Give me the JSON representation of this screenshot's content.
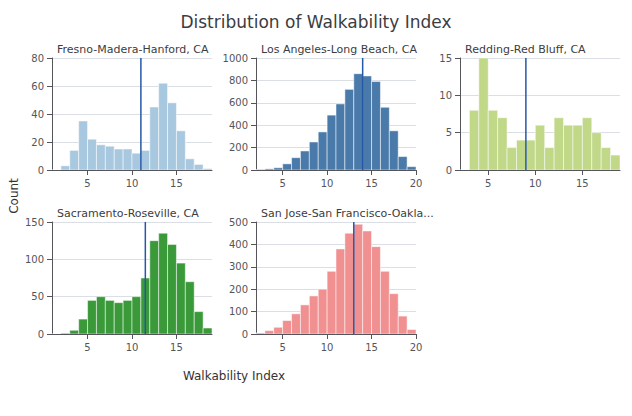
{
  "title": "Distribution of Walkability Index",
  "xlabel": "Walkability Index",
  "ylabel": "Count",
  "chart_data": [
    {
      "type": "histogram",
      "title": "Fresno-Madera-Hanford, CA",
      "color": "#a8c8e0",
      "bins": [
        1,
        2,
        3,
        4,
        5,
        6,
        7,
        8,
        9,
        10,
        11,
        12,
        13,
        14,
        15,
        16,
        17,
        18,
        19
      ],
      "values": [
        0,
        3,
        14,
        35,
        22,
        18,
        17,
        15,
        15,
        12,
        14,
        45,
        62,
        48,
        28,
        8,
        4,
        1
      ],
      "mean_line": {
        "value": 11.0,
        "color": "#2457a8"
      },
      "xlim": [
        1,
        19
      ],
      "xticks": [
        5,
        10,
        15
      ],
      "ylim": [
        0,
        80
      ],
      "yticks": [
        0,
        20,
        40,
        60,
        80
      ],
      "grid": true
    },
    {
      "type": "histogram",
      "title": "Los Angeles-Long Beach, CA",
      "color": "#4a7aaa",
      "bins": [
        2,
        3,
        4,
        5,
        6,
        7,
        8,
        9,
        10,
        11,
        12,
        13,
        14,
        15,
        16,
        17,
        18,
        19,
        20
      ],
      "values": [
        5,
        10,
        20,
        55,
        110,
        170,
        250,
        340,
        490,
        590,
        720,
        860,
        840,
        790,
        560,
        350,
        120,
        30
      ],
      "mean_line": {
        "value": 14.0,
        "color": "#2457a8"
      },
      "xlim": [
        2,
        20
      ],
      "xticks": [
        5,
        10,
        15,
        20
      ],
      "ylim": [
        0,
        1000
      ],
      "yticks": [
        0,
        200,
        400,
        600,
        800,
        1000
      ],
      "grid": true
    },
    {
      "type": "histogram",
      "title": "Redding-Red Bluff, CA",
      "color": "#c0d888",
      "bins": [
        2,
        3,
        4,
        5,
        6,
        7,
        8,
        9,
        10,
        11,
        12,
        13,
        14,
        15,
        16,
        17,
        18,
        19
      ],
      "values": [
        0,
        8,
        15,
        8,
        7,
        3,
        4,
        4,
        6,
        3,
        7,
        6,
        6,
        7,
        5,
        3,
        2
      ],
      "mean_line": {
        "value": 9.0,
        "color": "#2457a8"
      },
      "xlim": [
        2,
        19
      ],
      "xticks": [
        5,
        10,
        15
      ],
      "ylim": [
        0,
        15
      ],
      "yticks": [
        0,
        5,
        10,
        15
      ],
      "grid": true
    },
    {
      "type": "histogram",
      "title": "Sacramento-Roseville, CA",
      "color": "#3a9a3a",
      "bins": [
        1,
        2,
        3,
        4,
        5,
        6,
        7,
        8,
        9,
        10,
        11,
        12,
        13,
        14,
        15,
        16,
        17,
        18,
        19
      ],
      "values": [
        0,
        1,
        5,
        20,
        45,
        50,
        45,
        42,
        45,
        50,
        75,
        125,
        135,
        120,
        95,
        70,
        30,
        8
      ],
      "mean_line": {
        "value": 11.5,
        "color": "#2457a8"
      },
      "xlim": [
        1,
        19
      ],
      "xticks": [
        5,
        10,
        15
      ],
      "ylim": [
        0,
        150
      ],
      "yticks": [
        0,
        50,
        100,
        150
      ],
      "grid": true
    },
    {
      "type": "histogram",
      "title": "San Jose-San Francisco-Oakla...",
      "color": "#f09090",
      "bins": [
        2,
        3,
        4,
        5,
        6,
        7,
        8,
        9,
        10,
        11,
        12,
        13,
        14,
        15,
        16,
        17,
        18,
        19,
        20
      ],
      "values": [
        5,
        15,
        30,
        60,
        90,
        130,
        170,
        200,
        280,
        380,
        450,
        490,
        460,
        390,
        280,
        180,
        80,
        20
      ],
      "mean_line": {
        "value": 13.0,
        "color": "#2457a8"
      },
      "xlim": [
        2,
        20
      ],
      "xticks": [
        5,
        10,
        15,
        20
      ],
      "ylim": [
        0,
        500
      ],
      "yticks": [
        0,
        100,
        200,
        300,
        400,
        500
      ],
      "grid": true
    }
  ]
}
